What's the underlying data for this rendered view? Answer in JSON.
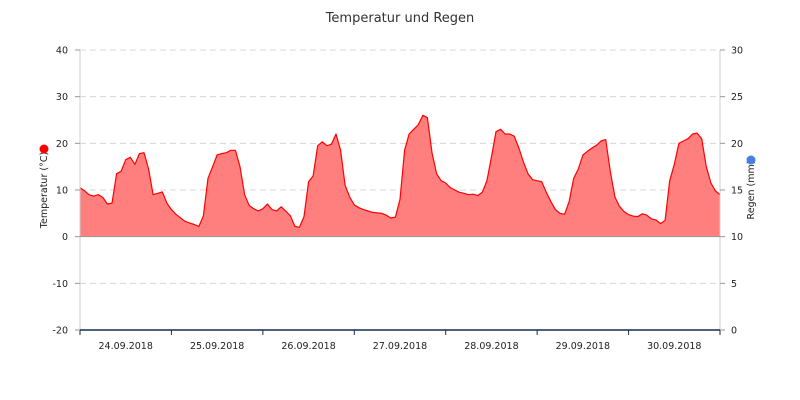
{
  "chart_data": {
    "type": "area",
    "title": "Temperatur und Regen",
    "y_left": {
      "label": "Temperatur (°C)",
      "ylim": [
        -20,
        40
      ],
      "ticks": [
        "40",
        "30",
        "20",
        "10",
        "0",
        "-10",
        "-20"
      ],
      "marker_color": "#ff0000"
    },
    "y_right": {
      "label": "Regen (mm)",
      "ylim": [
        0,
        30
      ],
      "ticks": [
        "30",
        "25",
        "20",
        "15",
        "10",
        "5",
        "0"
      ],
      "marker_color": "#4a7fe0"
    },
    "x_labels": [
      "24.09.2018",
      "25.09.2018",
      "26.09.2018",
      "27.09.2018",
      "28.09.2018",
      "29.09.2018",
      "30.09.2018"
    ],
    "grid": "horizontal dashed",
    "series": [
      {
        "color": "#ff0000",
        "fill": "#ff7f7f",
        "x_days": [
          0,
          0.05,
          0.1,
          0.15,
          0.2,
          0.25,
          0.3,
          0.35,
          0.4,
          0.45,
          0.5,
          0.55,
          0.6,
          0.65,
          0.7,
          0.75,
          0.8,
          0.85,
          0.9,
          0.95,
          1.0,
          1.05,
          1.1,
          1.15,
          1.2,
          1.25,
          1.3,
          1.35,
          1.4,
          1.45,
          1.5,
          1.55,
          1.6,
          1.65,
          1.7,
          1.75,
          1.8,
          1.85,
          1.9,
          1.95,
          2.0,
          2.05,
          2.1,
          2.15,
          2.2,
          2.25,
          2.3,
          2.35,
          2.4,
          2.45,
          2.5,
          2.55,
          2.6,
          2.65,
          2.7,
          2.75,
          2.8,
          2.85,
          2.9,
          2.95,
          3.0,
          3.05,
          3.1,
          3.15,
          3.2,
          3.25,
          3.3,
          3.35,
          3.4,
          3.45,
          3.5,
          3.55,
          3.6,
          3.65,
          3.7,
          3.75,
          3.8,
          3.85,
          3.9,
          3.95,
          4.0,
          4.05,
          4.1,
          4.15,
          4.2,
          4.25,
          4.3,
          4.35,
          4.4,
          4.45,
          4.5,
          4.55,
          4.6,
          4.65,
          4.7,
          4.75,
          4.8,
          4.85,
          4.9,
          4.95,
          5.0,
          5.05,
          5.1,
          5.15,
          5.2,
          5.25,
          5.3,
          5.35,
          5.4,
          5.45,
          5.5,
          5.55,
          5.6,
          5.65,
          5.7,
          5.75,
          5.8,
          5.85,
          5.9,
          5.95,
          6.0,
          6.05,
          6.1,
          6.15,
          6.2,
          6.25,
          6.3,
          6.35,
          6.4,
          6.45,
          6.5,
          6.55,
          6.6,
          6.65,
          6.7,
          6.75,
          6.8,
          6.85,
          6.9,
          6.95,
          7.0
        ],
        "values": [
          10.5,
          9.8,
          9.0,
          8.7,
          9.0,
          8.4,
          7.0,
          7.2,
          13.5,
          14.0,
          16.5,
          17.0,
          15.5,
          17.8,
          18.0,
          14.5,
          9.0,
          9.3,
          9.6,
          7.2,
          5.8,
          4.8,
          4.0,
          3.3,
          2.9,
          2.6,
          2.2,
          4.5,
          12.5,
          15.0,
          17.5,
          17.8,
          18.0,
          18.5,
          18.5,
          15.0,
          9.0,
          6.7,
          6.0,
          5.5,
          6.0,
          7.0,
          5.8,
          5.5,
          6.4,
          5.5,
          4.5,
          2.2,
          2.0,
          4.3,
          11.8,
          13.0,
          19.5,
          20.3,
          19.5,
          19.8,
          22.0,
          18.5,
          11.0,
          8.5,
          6.8,
          6.2,
          5.8,
          5.5,
          5.2,
          5.1,
          5.0,
          4.6,
          4.0,
          4.2,
          8.0,
          18.5,
          22.0,
          23.0,
          24.0,
          26.0,
          25.5,
          18.0,
          13.5,
          12.0,
          11.5,
          10.5,
          10.0,
          9.5,
          9.3,
          9.0,
          9.1,
          8.8,
          9.5,
          12.0,
          17.0,
          22.5,
          23.0,
          22.0,
          22.0,
          21.5,
          19.0,
          16.0,
          13.5,
          12.2,
          12.0,
          11.8,
          9.5,
          7.5,
          5.8,
          5.0,
          4.8,
          7.5,
          12.5,
          14.5,
          17.5,
          18.3,
          19.0,
          19.6,
          20.5,
          20.8,
          14.0,
          8.5,
          6.5,
          5.4,
          4.7,
          4.4,
          4.3,
          4.9,
          4.6,
          3.8,
          3.6,
          2.8,
          3.5,
          12.0,
          15.5,
          20.0,
          20.5,
          21.0,
          22.0,
          22.2,
          21.0,
          15.0,
          11.5,
          9.8,
          9.0
        ]
      }
    ]
  }
}
